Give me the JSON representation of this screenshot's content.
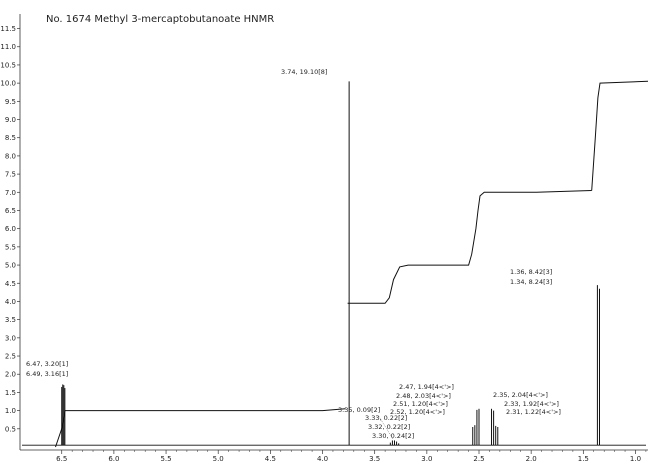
{
  "chart_data": {
    "type": "line",
    "title": "No. 1674 Methyl 3-mercaptobutanoate HNMR",
    "x_ticks": [
      "6.5",
      "6.0",
      "5.5",
      "5.0",
      "4.5",
      "4.0",
      "3.5",
      "3.0",
      "2.5",
      "2.0",
      "1.5",
      "1.0"
    ],
    "y_ticks": [
      "0.5",
      "1.0",
      "1.5",
      "2.0",
      "2.5",
      "3.0",
      "3.5",
      "4.0",
      "4.5",
      "5.0",
      "5.5",
      "6.0",
      "6.5",
      "7.0",
      "7.5",
      "8.0",
      "8.5",
      "9.0",
      "9.5",
      "10.0",
      "10.5",
      "11.0",
      "11.5"
    ],
    "xlim": [
      6.9,
      0.88
    ],
    "ylim": [
      0,
      11.9
    ],
    "x_reversed": true,
    "peak_labels": [
      {
        "text": "3.74, 19.10[8]"
      },
      {
        "text": "6.47, 3.20[1]"
      },
      {
        "text": "6.49, 3.16[1]"
      },
      {
        "text": "1.36, 8.42[3]"
      },
      {
        "text": "1.34, 8.24[3]"
      },
      {
        "text": "3.35, 0.09[2]"
      },
      {
        "text": "3.33, 0.22[2]"
      },
      {
        "text": "3.32, 0.22[2]"
      },
      {
        "text": "3.30, 0.24[2]"
      },
      {
        "text": "2.47, 1.94[4<'>]"
      },
      {
        "text": "2.48, 2.03[4<'>]"
      },
      {
        "text": "2.51, 1.20[4<'>]"
      },
      {
        "text": "2.52, 1.20[4<'>]"
      },
      {
        "text": "2.35, 2.04[4<'>]"
      },
      {
        "text": "2.33, 1.92[4<'>]"
      },
      {
        "text": "2.31, 1.22[4<'>]"
      }
    ],
    "peaks": [
      {
        "x": 6.5,
        "y": 1.65
      },
      {
        "x": 6.49,
        "y": 1.72
      },
      {
        "x": 6.48,
        "y": 1.7
      },
      {
        "x": 6.47,
        "y": 1.62
      },
      {
        "x": 3.745,
        "y": 10.05
      },
      {
        "x": 3.35,
        "y": 0.12
      },
      {
        "x": 3.33,
        "y": 0.18
      },
      {
        "x": 3.31,
        "y": 0.18
      },
      {
        "x": 3.29,
        "y": 0.15
      },
      {
        "x": 3.27,
        "y": 0.1
      },
      {
        "x": 2.56,
        "y": 0.55
      },
      {
        "x": 2.54,
        "y": 0.6
      },
      {
        "x": 2.52,
        "y": 1.02
      },
      {
        "x": 2.5,
        "y": 1.05
      },
      {
        "x": 2.38,
        "y": 1.05
      },
      {
        "x": 2.36,
        "y": 1.0
      },
      {
        "x": 2.34,
        "y": 0.58
      },
      {
        "x": 2.32,
        "y": 0.55
      },
      {
        "x": 1.365,
        "y": 4.45
      },
      {
        "x": 1.345,
        "y": 4.35
      }
    ],
    "integral_1": [
      [
        6.56,
        0.0
      ],
      [
        6.5,
        0.5
      ],
      [
        6.47,
        1.0
      ],
      [
        4.0,
        1.0
      ],
      [
        3.78,
        1.05
      ]
    ],
    "integral_2": [
      [
        3.76,
        3.95
      ],
      [
        3.4,
        3.95
      ],
      [
        3.36,
        4.1
      ],
      [
        3.32,
        4.6
      ],
      [
        3.26,
        4.95
      ],
      [
        3.18,
        5.0
      ],
      [
        2.6,
        5.0
      ],
      [
        2.57,
        5.3
      ],
      [
        2.55,
        5.65
      ],
      [
        2.53,
        6.0
      ],
      [
        2.51,
        6.5
      ],
      [
        2.49,
        6.9
      ],
      [
        2.45,
        7.0
      ],
      [
        1.95,
        7.0
      ],
      [
        1.42,
        7.05
      ]
    ],
    "integral_3": [
      [
        1.42,
        7.05
      ],
      [
        1.385,
        8.5
      ],
      [
        1.36,
        9.6
      ],
      [
        1.34,
        10.0
      ],
      [
        0.88,
        10.05
      ]
    ]
  }
}
